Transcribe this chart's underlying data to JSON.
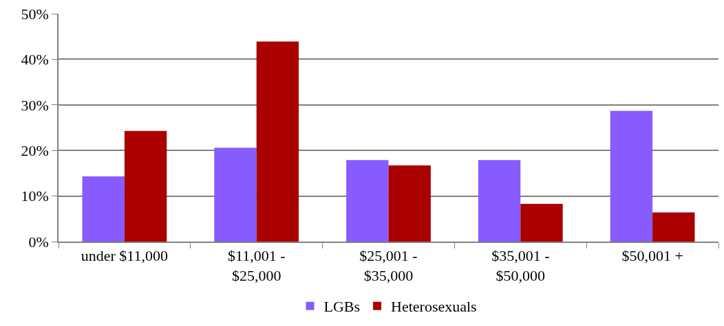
{
  "chart_data": {
    "type": "bar",
    "categories": [
      "under $11,000",
      "$11,001 -\n$25,000",
      "$25,001 -\n$35,000",
      "$35,001 -\n$50,000",
      "$50,001 +"
    ],
    "series": [
      {
        "name": "LGBs",
        "color": "#875bfd",
        "values": [
          14.3,
          20.6,
          17.9,
          17.9,
          28.7
        ]
      },
      {
        "name": "Heterosexuals",
        "color": "#aa0000",
        "values": [
          24.3,
          43.9,
          16.7,
          8.3,
          6.4
        ]
      }
    ],
    "ylim": [
      0,
      50
    ],
    "yticks": [
      {
        "value": 0,
        "label": "0%"
      },
      {
        "value": 10,
        "label": "10%"
      },
      {
        "value": 20,
        "label": "20%"
      },
      {
        "value": 30,
        "label": "30%"
      },
      {
        "value": 40,
        "label": "40%"
      },
      {
        "value": 50,
        "label": "50%"
      }
    ],
    "grid": "y",
    "legend": "bottom"
  }
}
